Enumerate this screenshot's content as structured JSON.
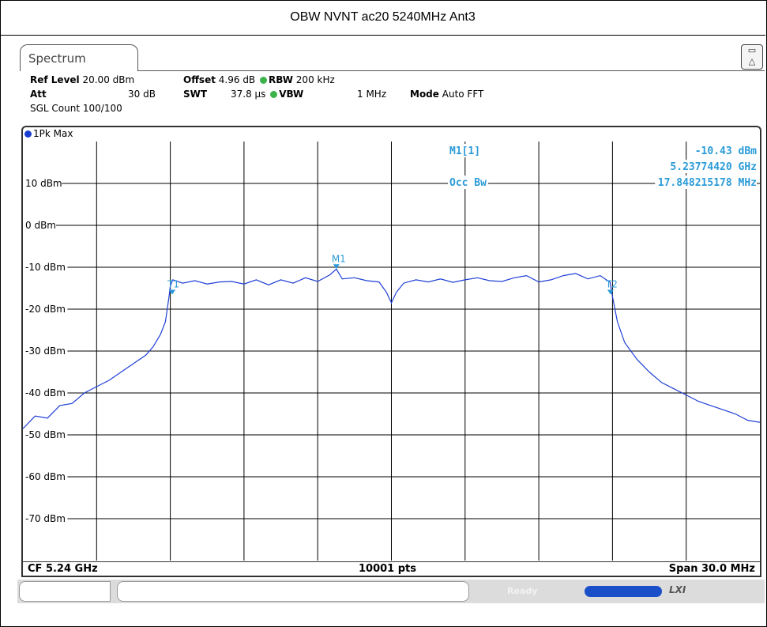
{
  "window_title": "OBW NVNT ac20 5240MHz Ant3",
  "tab": {
    "label": "Spectrum"
  },
  "settings": {
    "ref_level_label": "Ref Level",
    "ref_level_value": "20.00 dBm",
    "offset_label": "Offset",
    "offset_value": "4.96 dB",
    "rbw_label": "RBW",
    "rbw_value": "200 kHz",
    "att_label": "Att",
    "att_value": "30 dB",
    "swt_label": "SWT",
    "swt_value": "37.8 µs",
    "vbw_label": "VBW",
    "vbw_value": "1 MHz",
    "mode_label": "Mode",
    "mode_value": "Auto FFT",
    "sgl_count": "SGL Count 100/100"
  },
  "trace": {
    "label": "1Pk Max"
  },
  "marker_info": {
    "m1_label": "M1[1]",
    "m1_level": "-10.43 dBm",
    "m1_freq": "5.23774420 GHz",
    "occ_label": "Occ Bw",
    "occ_value": "17.848215178 MHz"
  },
  "bottom": {
    "cf": "CF 5.24 GHz",
    "pts": "10001 pts",
    "span": "Span 30.0 MHz"
  },
  "status": {
    "ready": "Ready",
    "lxi": "LXI"
  },
  "colors": {
    "trace": "#1f3fd6",
    "marker": "#2a9bd8",
    "grid": "#000000"
  },
  "chart_data": {
    "type": "line",
    "title": "",
    "xlabel": "",
    "ylabel": "",
    "x_unit": "MHz offset from CF",
    "xlim": [
      -15,
      15
    ],
    "ylim": [
      -80,
      20
    ],
    "y_ticks": [
      10,
      0,
      -10,
      -20,
      -30,
      -40,
      -50,
      -60,
      -70
    ],
    "y_tick_labels": [
      "10 dBm",
      "0 dBm",
      "-10 dBm",
      "-20 dBm",
      "-30 dBm",
      "-40 dBm",
      "-50 dBm",
      "-60 dBm",
      "-70 dBm"
    ],
    "grid": true,
    "series": [
      {
        "name": "1Pk Max",
        "x": [
          -15.0,
          -14.5,
          -14.0,
          -13.5,
          -13.0,
          -12.5,
          -12.0,
          -11.5,
          -11.0,
          -10.5,
          -10.0,
          -9.7,
          -9.4,
          -9.2,
          -9.05,
          -9.0,
          -8.9,
          -8.5,
          -8.0,
          -7.5,
          -7.0,
          -6.5,
          -6.0,
          -5.5,
          -5.0,
          -4.5,
          -4.0,
          -3.5,
          -3.0,
          -2.5,
          -2.24,
          -2.0,
          -1.5,
          -1.0,
          -0.5,
          -0.2,
          0.0,
          0.2,
          0.5,
          1.0,
          1.5,
          2.0,
          2.5,
          3.0,
          3.5,
          4.0,
          4.5,
          5.0,
          5.5,
          6.0,
          6.5,
          7.0,
          7.5,
          8.0,
          8.5,
          8.8,
          8.9,
          9.0,
          9.2,
          9.5,
          10.0,
          10.5,
          11.0,
          11.5,
          12.0,
          12.5,
          13.0,
          13.5,
          14.0,
          14.5,
          15.0
        ],
        "y": [
          -48.5,
          -45.5,
          -46,
          -43,
          -42.5,
          -40,
          -38.5,
          -37,
          -35,
          -33,
          -31,
          -29,
          -26,
          -23,
          -17,
          -14.5,
          -13,
          -13.8,
          -13.2,
          -14,
          -13.5,
          -13.4,
          -14,
          -13,
          -14.2,
          -13,
          -13.8,
          -12.5,
          -13.4,
          -11.8,
          -10.43,
          -12.8,
          -12.5,
          -13.2,
          -13.5,
          -16,
          -18.5,
          -16,
          -13.8,
          -13,
          -13.5,
          -12.8,
          -13.6,
          -13,
          -12.5,
          -13.2,
          -13.4,
          -12.5,
          -12,
          -13.5,
          -13,
          -12,
          -11.5,
          -12.8,
          -12,
          -13.2,
          -13.5,
          -17,
          -23,
          -28,
          -32,
          -35,
          -37.5,
          -39,
          -40.5,
          -42,
          -43,
          -44,
          -45,
          -46.5,
          -47
        ]
      }
    ],
    "markers": [
      {
        "label": "M1",
        "x": -2.24,
        "y": -10.43
      },
      {
        "label": "T1",
        "x": -8.92,
        "y": -16.5
      },
      {
        "label": "T2",
        "x": 8.92,
        "y": -16.5
      }
    ]
  }
}
